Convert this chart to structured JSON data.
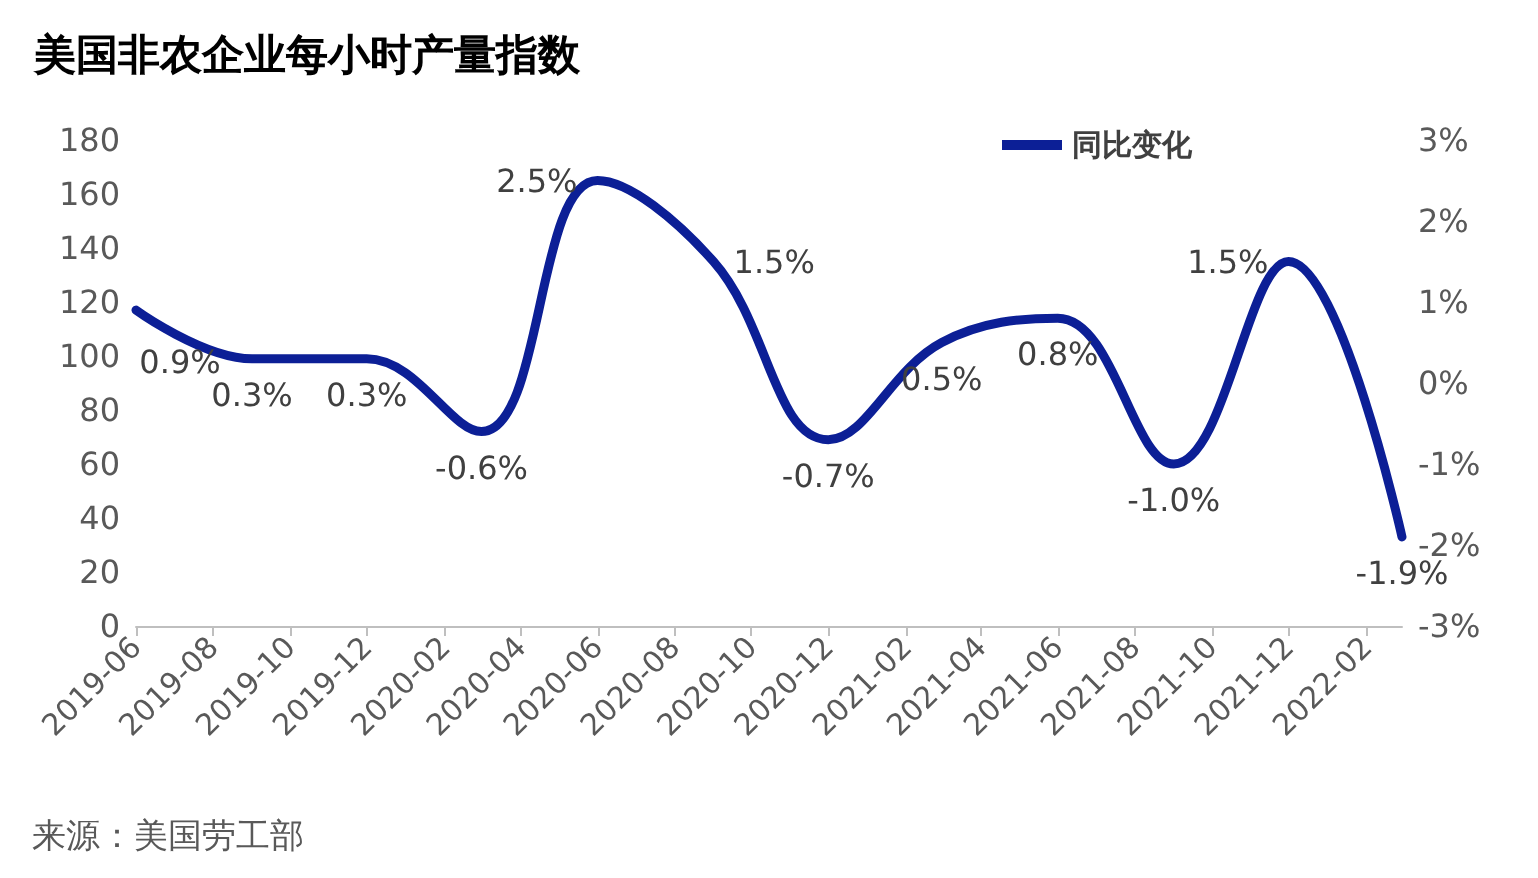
{
  "chart_data": {
    "type": "line",
    "title": "美国非农企业每小时产量指数",
    "x": [
      "2019-06",
      "2019-09",
      "2019-12",
      "2020-03",
      "2020-06",
      "2020-09",
      "2020-12",
      "2021-03",
      "2021-06",
      "2021-09",
      "2021-12",
      "2022-03"
    ],
    "series": [
      {
        "name": "同比变化",
        "color": "#0c1f96",
        "axis": "y2",
        "values": [
          0.9,
          0.3,
          0.3,
          -0.6,
          2.5,
          1.5,
          -0.7,
          0.5,
          0.8,
          -1.0,
          1.5,
          -1.9
        ],
        "value_labels": [
          "0.9%",
          "0.3%",
          "0.3%",
          "-0.6%",
          "2.5%",
          "1.5%",
          "-0.7%",
          "0.5%",
          "0.8%",
          "-1.0%",
          "1.5%",
          "-1.9%"
        ]
      }
    ],
    "xlim": [
      "2019-06",
      "2022-03"
    ],
    "xticks": [
      "2019-06",
      "2019-08",
      "2019-10",
      "2019-12",
      "2020-02",
      "2020-04",
      "2020-06",
      "2020-08",
      "2020-10",
      "2020-12",
      "2021-02",
      "2021-04",
      "2021-06",
      "2021-08",
      "2021-10",
      "2021-12",
      "2022-02"
    ],
    "ylim": [
      0,
      180
    ],
    "yticks": [
      0,
      20,
      40,
      60,
      80,
      100,
      120,
      140,
      160,
      180
    ],
    "y2lim": [
      -3,
      3
    ],
    "y2ticks": [
      {
        "value": -3,
        "label": "-3%"
      },
      {
        "value": -2,
        "label": "-2%"
      },
      {
        "value": -1,
        "label": "-1%"
      },
      {
        "value": 0,
        "label": "0%"
      },
      {
        "value": 1,
        "label": "1%"
      },
      {
        "value": 2,
        "label": "2%"
      },
      {
        "value": 3,
        "label": "3%"
      }
    ],
    "legend": "top right",
    "grid": false,
    "marker": "none",
    "line_style": "solid",
    "annotations": [
      "来源：美国劳工部"
    ]
  }
}
